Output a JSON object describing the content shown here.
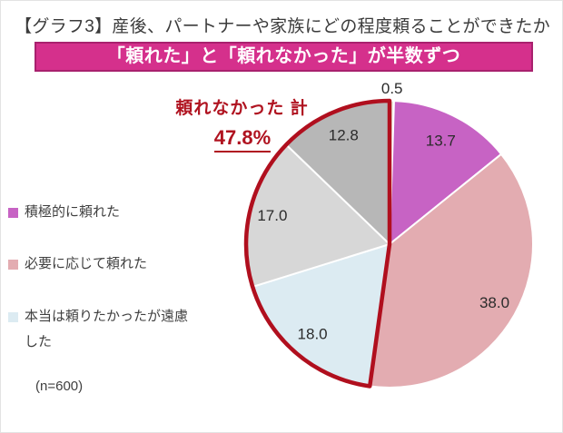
{
  "title": "【グラフ3】産後、パートナーや家族にどの程度頼ることができたか",
  "banner": {
    "text": "「頼れた」と「頼れなかった」が半数ずつ"
  },
  "annotation": {
    "label": "頼れなかった 計",
    "value": "47.8%"
  },
  "sample_size": "(n=600)",
  "legend": {
    "items": [
      {
        "label": "積極的に頼れた",
        "color": "#c763c4"
      },
      {
        "label": "必要に応じて頼れた",
        "color": "#e3acb1"
      },
      {
        "label": "本当は頼りたかったが遠慮した",
        "color": "#dcebf2"
      }
    ]
  },
  "chart_data": {
    "type": "pie",
    "title": "産後、パートナーや家族にどの程度頼ることができたか",
    "unit": "%",
    "sample_n": 600,
    "start_angle_deg": 0,
    "direction": "clockwise",
    "slices": [
      {
        "value": 0.5,
        "color": "#e7ecd6",
        "legend_label": ""
      },
      {
        "value": 13.7,
        "color": "#c763c4",
        "legend_label": "積極的に頼れた"
      },
      {
        "value": 38.0,
        "color": "#e3acb1",
        "legend_label": "必要に応じて頼れた"
      },
      {
        "value": 18.0,
        "color": "#dcebf2",
        "legend_label": "本当は頼りたかったが遠慮した"
      },
      {
        "value": 17.0,
        "color": "#d7d7d7",
        "legend_label": ""
      },
      {
        "value": 12.8,
        "color": "#b7b7b7",
        "legend_label": ""
      }
    ],
    "highlight": {
      "slice_indices": [
        3,
        4,
        5
      ],
      "total": 47.8,
      "label": "頼れなかった 計",
      "outline_color": "#b00f1e"
    }
  }
}
